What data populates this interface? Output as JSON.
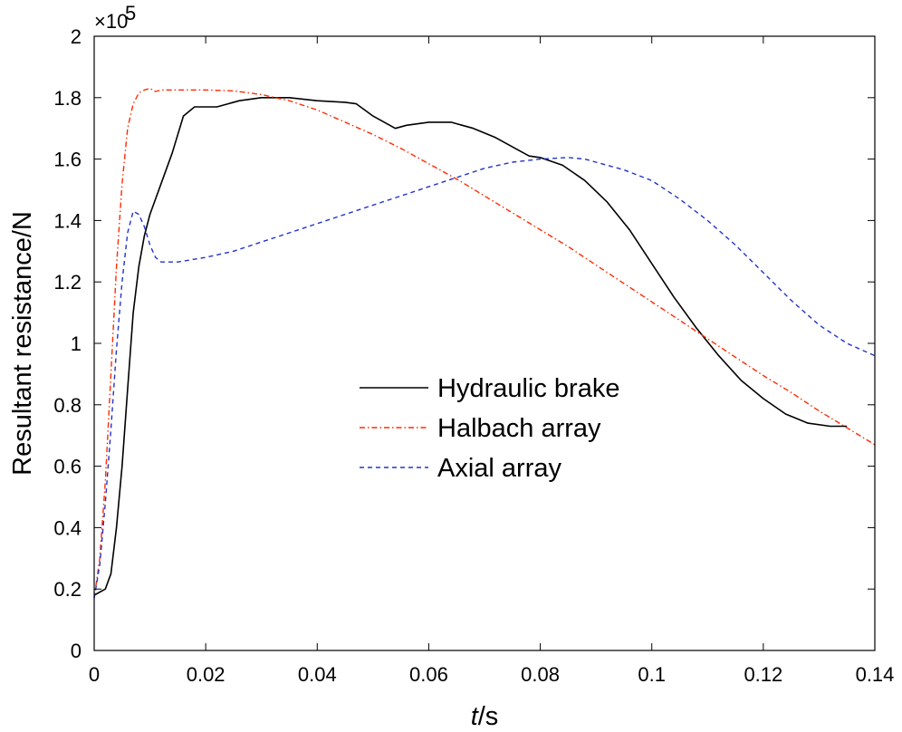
{
  "chart_data": {
    "type": "line",
    "xlabel": "t/s",
    "xlabel_italic": "t",
    "xlabel_unit": "/s",
    "ylabel": "Resultant resistance/N",
    "y_multiplier": "×10",
    "y_multiplier_exp": "5",
    "xlim": [
      0,
      0.14
    ],
    "ylim": [
      0,
      2
    ],
    "x_ticks": [
      0,
      0.02,
      0.04,
      0.06,
      0.08,
      0.1,
      0.12,
      0.14
    ],
    "x_tick_labels": [
      "0",
      "0.02",
      "0.04",
      "0.06",
      "0.08",
      "0.1",
      "0.12",
      "0.14"
    ],
    "y_ticks": [
      0,
      0.2,
      0.4,
      0.6,
      0.8,
      1,
      1.2,
      1.4,
      1.6,
      1.8,
      2
    ],
    "y_tick_labels": [
      "0",
      "0.2",
      "0.4",
      "0.6",
      "0.8",
      "1",
      "1.2",
      "1.4",
      "1.6",
      "1.8",
      "2"
    ],
    "grid": false,
    "legend_position": "center",
    "series": [
      {
        "name": "Hydraulic brake",
        "color": "#000000",
        "dash": "solid",
        "points": [
          [
            0,
            0.18
          ],
          [
            0.002,
            0.2
          ],
          [
            0.003,
            0.25
          ],
          [
            0.004,
            0.4
          ],
          [
            0.005,
            0.6
          ],
          [
            0.006,
            0.85
          ],
          [
            0.007,
            1.1
          ],
          [
            0.008,
            1.25
          ],
          [
            0.009,
            1.35
          ],
          [
            0.01,
            1.42
          ],
          [
            0.012,
            1.52
          ],
          [
            0.014,
            1.62
          ],
          [
            0.016,
            1.74
          ],
          [
            0.018,
            1.77
          ],
          [
            0.02,
            1.77
          ],
          [
            0.022,
            1.77
          ],
          [
            0.024,
            1.78
          ],
          [
            0.026,
            1.79
          ],
          [
            0.03,
            1.8
          ],
          [
            0.035,
            1.8
          ],
          [
            0.04,
            1.79
          ],
          [
            0.045,
            1.785
          ],
          [
            0.047,
            1.78
          ],
          [
            0.05,
            1.74
          ],
          [
            0.054,
            1.7
          ],
          [
            0.056,
            1.71
          ],
          [
            0.06,
            1.72
          ],
          [
            0.064,
            1.72
          ],
          [
            0.068,
            1.7
          ],
          [
            0.072,
            1.67
          ],
          [
            0.076,
            1.63
          ],
          [
            0.078,
            1.61
          ],
          [
            0.08,
            1.605
          ],
          [
            0.084,
            1.58
          ],
          [
            0.088,
            1.53
          ],
          [
            0.092,
            1.46
          ],
          [
            0.096,
            1.37
          ],
          [
            0.1,
            1.26
          ],
          [
            0.104,
            1.15
          ],
          [
            0.108,
            1.05
          ],
          [
            0.112,
            0.96
          ],
          [
            0.116,
            0.88
          ],
          [
            0.12,
            0.82
          ],
          [
            0.124,
            0.77
          ],
          [
            0.128,
            0.74
          ],
          [
            0.132,
            0.73
          ],
          [
            0.135,
            0.73
          ]
        ]
      },
      {
        "name": "Halbach array",
        "color": "#ff2a00",
        "dash": "dashdot",
        "points": [
          [
            0,
            0.17
          ],
          [
            0.001,
            0.3
          ],
          [
            0.002,
            0.55
          ],
          [
            0.003,
            0.9
          ],
          [
            0.004,
            1.25
          ],
          [
            0.005,
            1.52
          ],
          [
            0.006,
            1.7
          ],
          [
            0.007,
            1.78
          ],
          [
            0.008,
            1.815
          ],
          [
            0.009,
            1.825
          ],
          [
            0.01,
            1.83
          ],
          [
            0.011,
            1.82
          ],
          [
            0.012,
            1.825
          ],
          [
            0.015,
            1.825
          ],
          [
            0.02,
            1.825
          ],
          [
            0.025,
            1.822
          ],
          [
            0.03,
            1.81
          ],
          [
            0.035,
            1.79
          ],
          [
            0.04,
            1.76
          ],
          [
            0.045,
            1.72
          ],
          [
            0.05,
            1.68
          ],
          [
            0.055,
            1.635
          ],
          [
            0.06,
            1.585
          ],
          [
            0.065,
            1.535
          ],
          [
            0.07,
            1.48
          ],
          [
            0.075,
            1.425
          ],
          [
            0.08,
            1.37
          ],
          [
            0.085,
            1.315
          ],
          [
            0.09,
            1.255
          ],
          [
            0.095,
            1.195
          ],
          [
            0.1,
            1.135
          ],
          [
            0.105,
            1.075
          ],
          [
            0.11,
            1.015
          ],
          [
            0.115,
            0.955
          ],
          [
            0.12,
            0.895
          ],
          [
            0.125,
            0.84
          ],
          [
            0.13,
            0.78
          ],
          [
            0.135,
            0.725
          ],
          [
            0.14,
            0.67
          ]
        ]
      },
      {
        "name": "Axial array",
        "color": "#2233cc",
        "dash": "dashed",
        "points": [
          [
            0,
            0.17
          ],
          [
            0.001,
            0.28
          ],
          [
            0.002,
            0.48
          ],
          [
            0.003,
            0.72
          ],
          [
            0.004,
            0.98
          ],
          [
            0.005,
            1.2
          ],
          [
            0.006,
            1.36
          ],
          [
            0.007,
            1.43
          ],
          [
            0.008,
            1.42
          ],
          [
            0.009,
            1.38
          ],
          [
            0.01,
            1.32
          ],
          [
            0.011,
            1.28
          ],
          [
            0.012,
            1.265
          ],
          [
            0.015,
            1.265
          ],
          [
            0.02,
            1.28
          ],
          [
            0.025,
            1.3
          ],
          [
            0.03,
            1.33
          ],
          [
            0.035,
            1.36
          ],
          [
            0.04,
            1.39
          ],
          [
            0.045,
            1.42
          ],
          [
            0.05,
            1.45
          ],
          [
            0.055,
            1.48
          ],
          [
            0.06,
            1.51
          ],
          [
            0.065,
            1.54
          ],
          [
            0.07,
            1.57
          ],
          [
            0.075,
            1.59
          ],
          [
            0.08,
            1.6
          ],
          [
            0.085,
            1.605
          ],
          [
            0.088,
            1.6
          ],
          [
            0.09,
            1.59
          ],
          [
            0.095,
            1.565
          ],
          [
            0.1,
            1.53
          ],
          [
            0.105,
            1.47
          ],
          [
            0.11,
            1.4
          ],
          [
            0.115,
            1.32
          ],
          [
            0.12,
            1.23
          ],
          [
            0.125,
            1.14
          ],
          [
            0.13,
            1.06
          ],
          [
            0.135,
            1.0
          ],
          [
            0.14,
            0.96
          ]
        ]
      }
    ]
  }
}
